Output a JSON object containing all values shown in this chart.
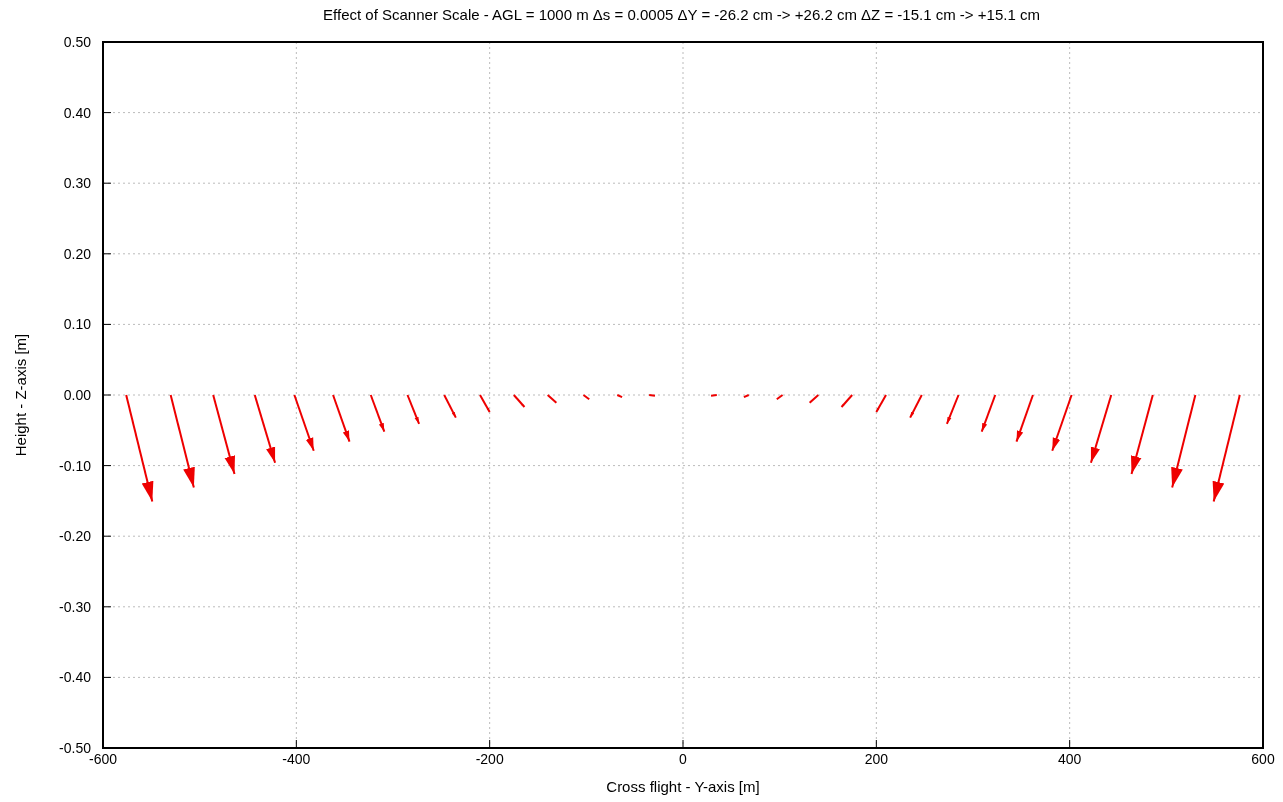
{
  "chart_data": {
    "type": "line",
    "title": "Effect of Scanner Scale - AGL = 1000 m  Δs = 0.0005  ΔY = -26.2 cm -> +26.2 cm  ΔZ = -15.1 cm -> +15.1 cm",
    "xlabel": "Cross flight  -  Y-axis [m]",
    "ylabel": "Height  -  Z-axis [m]",
    "xlim": [
      -600,
      600
    ],
    "ylim": [
      -0.5,
      0.5
    ],
    "xticks": [
      -600,
      -400,
      -200,
      0,
      200,
      400,
      600
    ],
    "yticks": [
      {
        "value": -0.5,
        "label": "-0.50"
      },
      {
        "value": -0.4,
        "label": "-0.40"
      },
      {
        "value": -0.3,
        "label": "-0.30"
      },
      {
        "value": -0.2,
        "label": "-0.20"
      },
      {
        "value": -0.1,
        "label": "-0.10"
      },
      {
        "value": 0,
        "label": "0.00"
      },
      {
        "value": 0.1,
        "label": "0.10"
      },
      {
        "value": 0.2,
        "label": "0.20"
      },
      {
        "value": 0.3,
        "label": "0.30"
      },
      {
        "value": 0.4,
        "label": "0.40"
      },
      {
        "value": 0.5,
        "label": "0.50"
      }
    ],
    "grid": true,
    "marker": "none",
    "line_style": "solid",
    "series": [
      {
        "color": "#ee0000",
        "x": [
          -576,
          -549
        ],
        "values": [
          0,
          -0.151
        ]
      },
      {
        "color": "#ee0000",
        "x": [
          -530,
          -506
        ],
        "values": [
          0,
          -0.131
        ]
      },
      {
        "color": "#ee0000",
        "x": [
          -486,
          -464
        ],
        "values": [
          0,
          -0.112
        ]
      },
      {
        "color": "#ee0000",
        "x": [
          -443,
          -422
        ],
        "values": [
          0,
          -0.096
        ]
      },
      {
        "color": "#ee0000",
        "x": [
          -402,
          -382
        ],
        "values": [
          0,
          -0.079
        ]
      },
      {
        "color": "#ee0000",
        "x": [
          -362,
          -345
        ],
        "values": [
          0,
          -0.066
        ]
      },
      {
        "color": "#ee0000",
        "x": [
          -323,
          -309
        ],
        "values": [
          0,
          -0.052
        ]
      },
      {
        "color": "#ee0000",
        "x": [
          -285,
          -273
        ],
        "values": [
          0,
          -0.041
        ]
      },
      {
        "color": "#ee0000",
        "x": [
          -247,
          -235
        ],
        "values": [
          0,
          -0.032
        ]
      },
      {
        "color": "#ee0000",
        "x": [
          -210,
          -200
        ],
        "values": [
          0,
          -0.024
        ]
      },
      {
        "color": "#ee0000",
        "x": [
          -175,
          -164
        ],
        "values": [
          0,
          -0.017
        ]
      },
      {
        "color": "#ee0000",
        "x": [
          -140,
          -131
        ],
        "values": [
          0,
          -0.011
        ]
      },
      {
        "color": "#ee0000",
        "x": [
          -103,
          -97
        ],
        "values": [
          0,
          -0.006
        ]
      },
      {
        "color": "#ee0000",
        "x": [
          -68,
          -63
        ],
        "values": [
          0,
          -0.003
        ]
      },
      {
        "color": "#ee0000",
        "x": [
          -35,
          -29
        ],
        "values": [
          0,
          -0.001
        ]
      },
      {
        "color": "#ee0000",
        "x": [
          35,
          29
        ],
        "values": [
          0,
          -0.001
        ]
      },
      {
        "color": "#ee0000",
        "x": [
          68,
          63
        ],
        "values": [
          0,
          -0.003
        ]
      },
      {
        "color": "#ee0000",
        "x": [
          103,
          97
        ],
        "values": [
          0,
          -0.006
        ]
      },
      {
        "color": "#ee0000",
        "x": [
          140,
          131
        ],
        "values": [
          0,
          -0.011
        ]
      },
      {
        "color": "#ee0000",
        "x": [
          175,
          164
        ],
        "values": [
          0,
          -0.017
        ]
      },
      {
        "color": "#ee0000",
        "x": [
          210,
          200
        ],
        "values": [
          0,
          -0.024
        ]
      },
      {
        "color": "#ee0000",
        "x": [
          247,
          235
        ],
        "values": [
          0,
          -0.032
        ]
      },
      {
        "color": "#ee0000",
        "x": [
          285,
          273
        ],
        "values": [
          0,
          -0.041
        ]
      },
      {
        "color": "#ee0000",
        "x": [
          323,
          309
        ],
        "values": [
          0,
          -0.052
        ]
      },
      {
        "color": "#ee0000",
        "x": [
          362,
          345
        ],
        "values": [
          0,
          -0.066
        ]
      },
      {
        "color": "#ee0000",
        "x": [
          402,
          382
        ],
        "values": [
          0,
          -0.079
        ]
      },
      {
        "color": "#ee0000",
        "x": [
          443,
          422
        ],
        "values": [
          0,
          -0.096
        ]
      },
      {
        "color": "#ee0000",
        "x": [
          486,
          464
        ],
        "values": [
          0,
          -0.112
        ]
      },
      {
        "color": "#ee0000",
        "x": [
          530,
          506
        ],
        "values": [
          0,
          -0.131
        ]
      },
      {
        "color": "#ee0000",
        "x": [
          576,
          549
        ],
        "values": [
          0,
          -0.151
        ]
      }
    ]
  }
}
